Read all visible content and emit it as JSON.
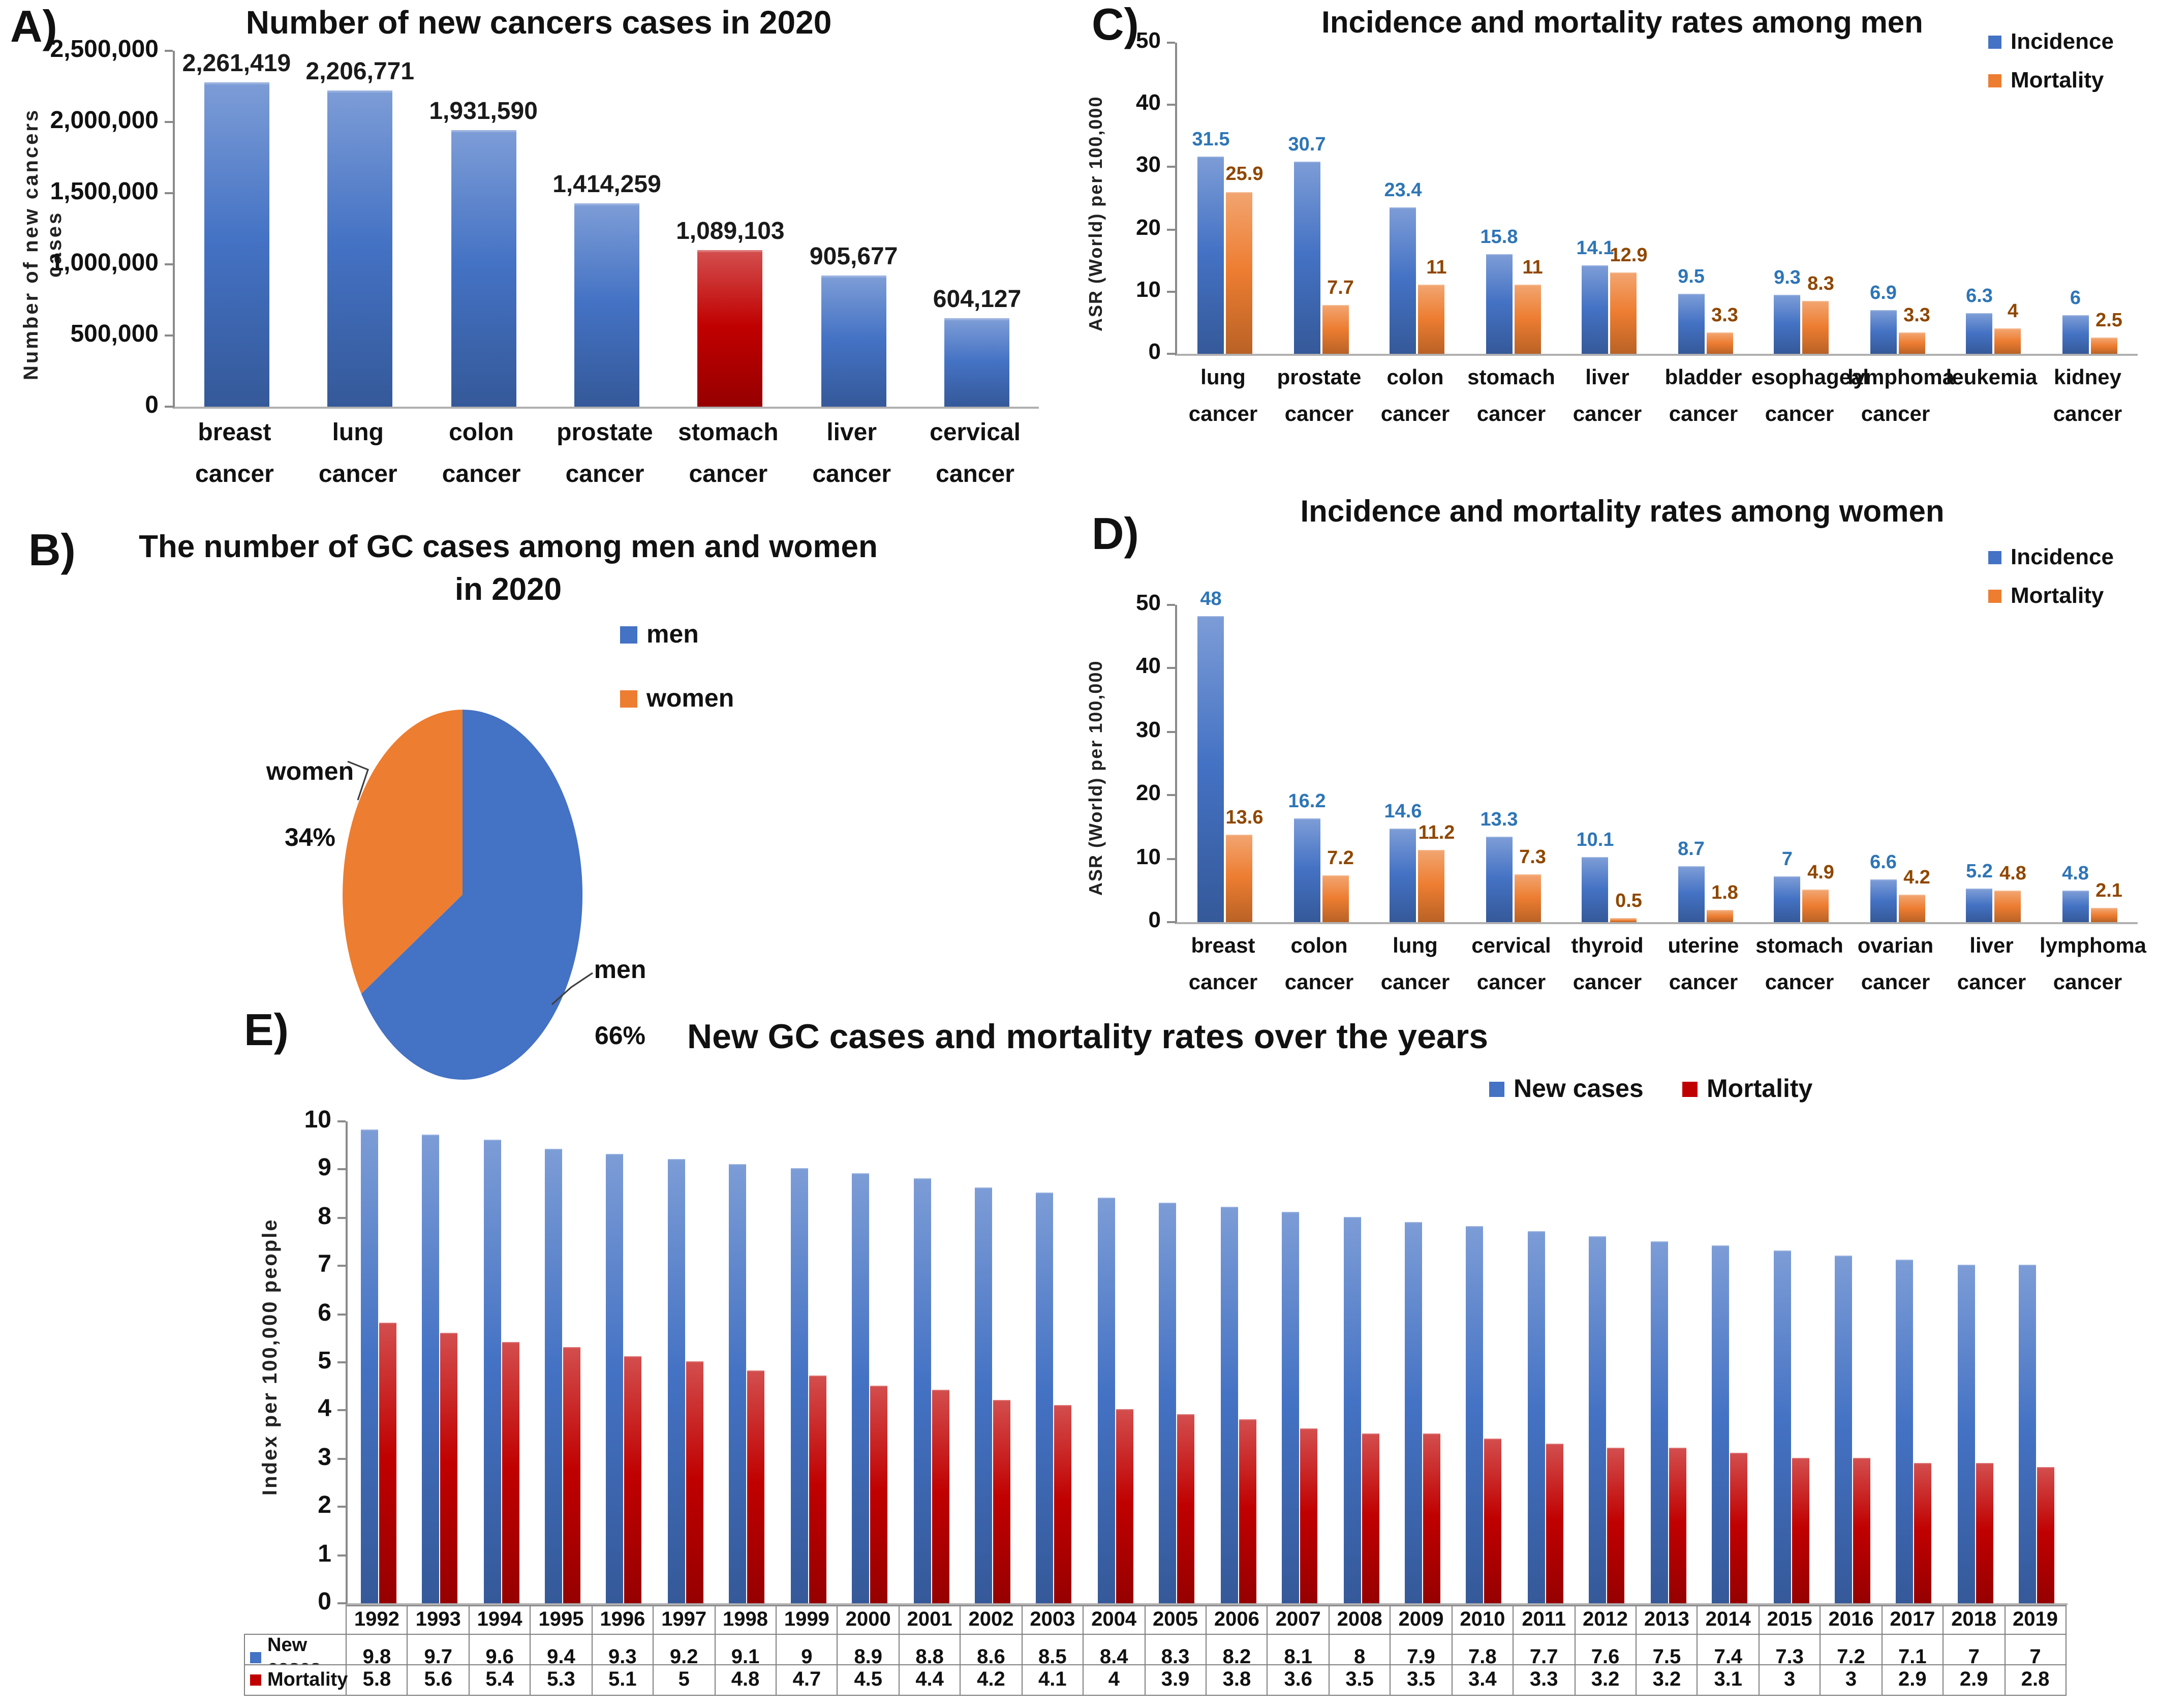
{
  "panel_labels": {
    "a": "A)",
    "b": "B)",
    "c": "C)",
    "d": "D)",
    "e": "E)"
  },
  "chart_data": [
    {
      "id": "A",
      "type": "bar",
      "title": "Number of new cancers cases in 2020",
      "ylabel": "Number of new cancers cases",
      "ylim": [
        0,
        2500000
      ],
      "yticks": [
        "0",
        "500,000",
        "1,000,000",
        "1,500,000",
        "2,000,000",
        "2,500,000"
      ],
      "grid": false,
      "categories": [
        "breast cancer",
        "lung cancer",
        "colon cancer",
        "prostate\ncancer",
        "stomach\ncancer",
        "liver cancer",
        "cervical\ncancer"
      ],
      "values": [
        2261419,
        2206771,
        1931590,
        1414259,
        1089103,
        905677,
        604127
      ],
      "value_labels": [
        "2,261,419",
        "2,206,771",
        "1,931,590",
        "1,414,259",
        "1,089,103",
        "905,677",
        "604,127"
      ],
      "bar_color_keys": [
        "blue",
        "blue",
        "blue",
        "blue",
        "red",
        "blue",
        "blue"
      ],
      "colors": {
        "blue": "#4472C4",
        "red": "#C00000"
      }
    },
    {
      "id": "B",
      "type": "pie",
      "title": "The number of GC cases among men and women\nin 2020",
      "slices": [
        {
          "label": "men",
          "pct": 66,
          "pct_label": "66%",
          "color": "#4472C4"
        },
        {
          "label": "women",
          "pct": 34,
          "pct_label": "34%",
          "color": "#ED7D31"
        }
      ],
      "legend_position": "right"
    },
    {
      "id": "C",
      "type": "grouped_bar",
      "title": "Incidence and mortality rates among men",
      "ylabel": "ASR (World) per 100,000",
      "ylim": [
        0,
        50
      ],
      "yticks": [
        "0",
        "10",
        "20",
        "30",
        "40",
        "50"
      ],
      "grid": false,
      "legend_position": "top-right",
      "categories": [
        "lung cancer",
        "prostate\ncancer",
        "colon\ncancer",
        "stomach\ncancer",
        "liver cancer",
        "bladder\ncancer",
        "esophageal\ncancer",
        "lymphoma\ncancer",
        "leukemia",
        "kidney\ncancer"
      ],
      "series": [
        {
          "name": "Incidence",
          "color": "#4472C4",
          "label_color": "#2E75B6",
          "values": [
            31.5,
            30.7,
            23.4,
            15.8,
            14.1,
            9.5,
            9.3,
            6.9,
            6.3,
            6
          ]
        },
        {
          "name": "Mortality",
          "color": "#ED7D31",
          "label_color": "#8F4700",
          "values": [
            25.9,
            7.7,
            11,
            11,
            12.9,
            3.3,
            8.3,
            3.3,
            4,
            2.5
          ]
        }
      ]
    },
    {
      "id": "D",
      "type": "grouped_bar",
      "title": "Incidence and mortality rates among women",
      "ylabel": "ASR (World) per 100,000",
      "ylim": [
        0,
        50
      ],
      "yticks": [
        "0",
        "10",
        "20",
        "30",
        "40",
        "50"
      ],
      "grid": false,
      "legend_position": "top-right",
      "categories": [
        "breast\ncancer",
        "colon\ncancer",
        "lung cancer",
        "cervical\ncancer",
        "thyroid\ncancer",
        "uterine\ncancer",
        "stomach\ncancer",
        "ovarian\ncancer",
        "liver cancer",
        "lymphoma\ncancer"
      ],
      "series": [
        {
          "name": "Incidence",
          "color": "#4472C4",
          "label_color": "#2E75B6",
          "values": [
            48,
            16.2,
            14.6,
            13.3,
            10.1,
            8.7,
            7,
            6.6,
            5.2,
            4.8
          ]
        },
        {
          "name": "Mortality",
          "color": "#ED7D31",
          "label_color": "#8F4700",
          "values": [
            13.6,
            7.2,
            11.2,
            7.3,
            0.5,
            1.8,
            4.9,
            4.2,
            4.8,
            2.1
          ]
        }
      ]
    },
    {
      "id": "E",
      "type": "grouped_bar_table",
      "title": "New GC cases and mortality rates over the years",
      "ylabel": "Index per 100,000 people",
      "ylim": [
        0,
        10
      ],
      "yticks": [
        "0",
        "1",
        "2",
        "3",
        "4",
        "5",
        "6",
        "7",
        "8",
        "9",
        "10"
      ],
      "grid": false,
      "legend_position": "top-right",
      "categories": [
        "1992",
        "1993",
        "1994",
        "1995",
        "1996",
        "1997",
        "1998",
        "1999",
        "2000",
        "2001",
        "2002",
        "2003",
        "2004",
        "2005",
        "2006",
        "2007",
        "2008",
        "2009",
        "2010",
        "2011",
        "2012",
        "2013",
        "2014",
        "2015",
        "2016",
        "2017",
        "2018",
        "2019"
      ],
      "series": [
        {
          "name": "New cases",
          "color": "#4472C4",
          "values": [
            9.8,
            9.7,
            9.6,
            9.4,
            9.3,
            9.2,
            9.1,
            9,
            8.9,
            8.8,
            8.6,
            8.5,
            8.4,
            8.3,
            8.2,
            8.1,
            8,
            7.9,
            7.8,
            7.7,
            7.6,
            7.5,
            7.4,
            7.3,
            7.2,
            7.1,
            7,
            7
          ]
        },
        {
          "name": "Mortality",
          "color": "#C00000",
          "values": [
            5.8,
            5.6,
            5.4,
            5.3,
            5.1,
            5,
            4.8,
            4.7,
            4.5,
            4.4,
            4.2,
            4.1,
            4,
            3.9,
            3.8,
            3.6,
            3.5,
            3.5,
            3.4,
            3.3,
            3.2,
            3.2,
            3.1,
            3,
            3,
            2.9,
            2.9,
            2.8
          ]
        }
      ]
    }
  ]
}
